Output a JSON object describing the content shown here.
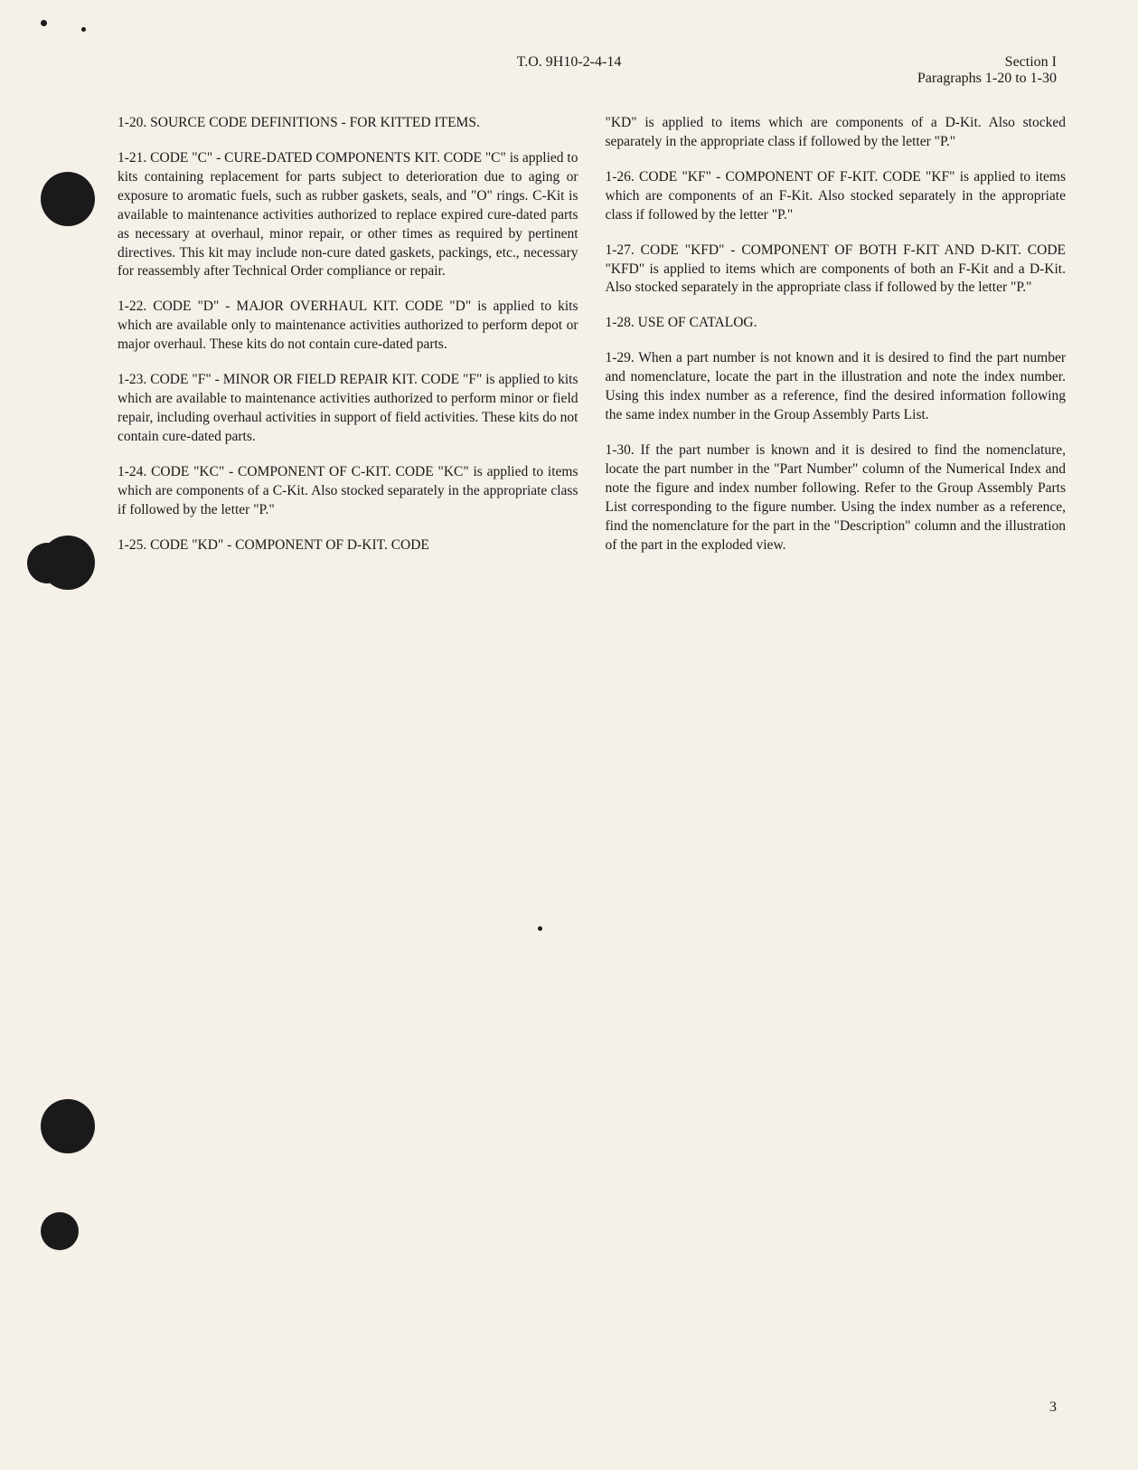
{
  "header": {
    "center": "T.O. 9H10-2-4-14",
    "right_line1": "Section I",
    "right_line2": "Paragraphs 1-20 to 1-30"
  },
  "left_column": {
    "para_1_20": "1-20. SOURCE CODE DEFINITIONS - FOR KITTED ITEMS.",
    "para_1_21": "1-21. CODE \"C\" - CURE-DATED COMPONENTS KIT. CODE \"C\" is applied to kits containing replacement for parts subject to deterioration due to aging or exposure to aromatic fuels, such as rubber gaskets, seals, and \"O\" rings. C-Kit is available to maintenance activities authorized to replace expired cure-dated parts as necessary at overhaul, minor repair, or other times as required by pertinent directives. This kit may include non-cure dated gaskets, packings, etc., necessary for reassembly after Technical Order compliance or repair.",
    "para_1_22": "1-22. CODE \"D\" - MAJOR OVERHAUL KIT. CODE \"D\" is applied to kits which are available only to maintenance activities authorized to perform depot or major overhaul. These kits do not contain cure-dated parts.",
    "para_1_23": "1-23. CODE \"F\" - MINOR OR FIELD REPAIR KIT. CODE \"F\" is applied to kits which are available to maintenance activities authorized to perform minor or field repair, including overhaul activities in support of field activities. These kits do not contain cure-dated parts.",
    "para_1_24": "1-24. CODE \"KC\" - COMPONENT OF C-KIT. CODE \"KC\" is applied to items which are components of a C-Kit. Also stocked separately in the appropriate class if followed by the letter \"P.\"",
    "para_1_25": "1-25. CODE \"KD\" - COMPONENT OF D-KIT. CODE"
  },
  "right_column": {
    "para_1_25_cont": "\"KD\" is applied to items which are components of a D-Kit. Also stocked separately in the appropriate class if followed by the letter \"P.\"",
    "para_1_26": "1-26. CODE \"KF\" - COMPONENT OF F-KIT. CODE \"KF\" is applied to items which are components of an F-Kit. Also stocked separately in the appropriate class if followed by the letter \"P.\"",
    "para_1_27": "1-27. CODE \"KFD\" - COMPONENT OF BOTH F-KIT AND D-KIT. CODE \"KFD\" is applied to items which are components of both an F-Kit and a D-Kit. Also stocked separately in the appropriate class if followed by the letter \"P.\"",
    "para_1_28": "1-28. USE OF CATALOG.",
    "para_1_29": "1-29. When a part number is not known and it is desired to find the part number and nomenclature, locate the part in the illustration and note the index number. Using this index number as a reference, find the desired information following the same index number in the Group Assembly Parts List.",
    "para_1_30": "1-30. If the part number is known and it is desired to find the nomenclature, locate the part number in the \"Part Number\" column of the Numerical Index and note the figure and index number following. Refer to the Group Assembly Parts List corresponding to the figure number. Using the index number as a reference, find the nomenclature for the part in the \"Description\" column and the illustration of the part in the exploded view."
  },
  "page_number": "3",
  "colors": {
    "background": "#f5f0e8",
    "text": "#1a1a1a",
    "hole": "#1a1a1a"
  },
  "typography": {
    "body_fontsize": 15.5,
    "header_fontsize": 16,
    "line_height": 1.35
  }
}
